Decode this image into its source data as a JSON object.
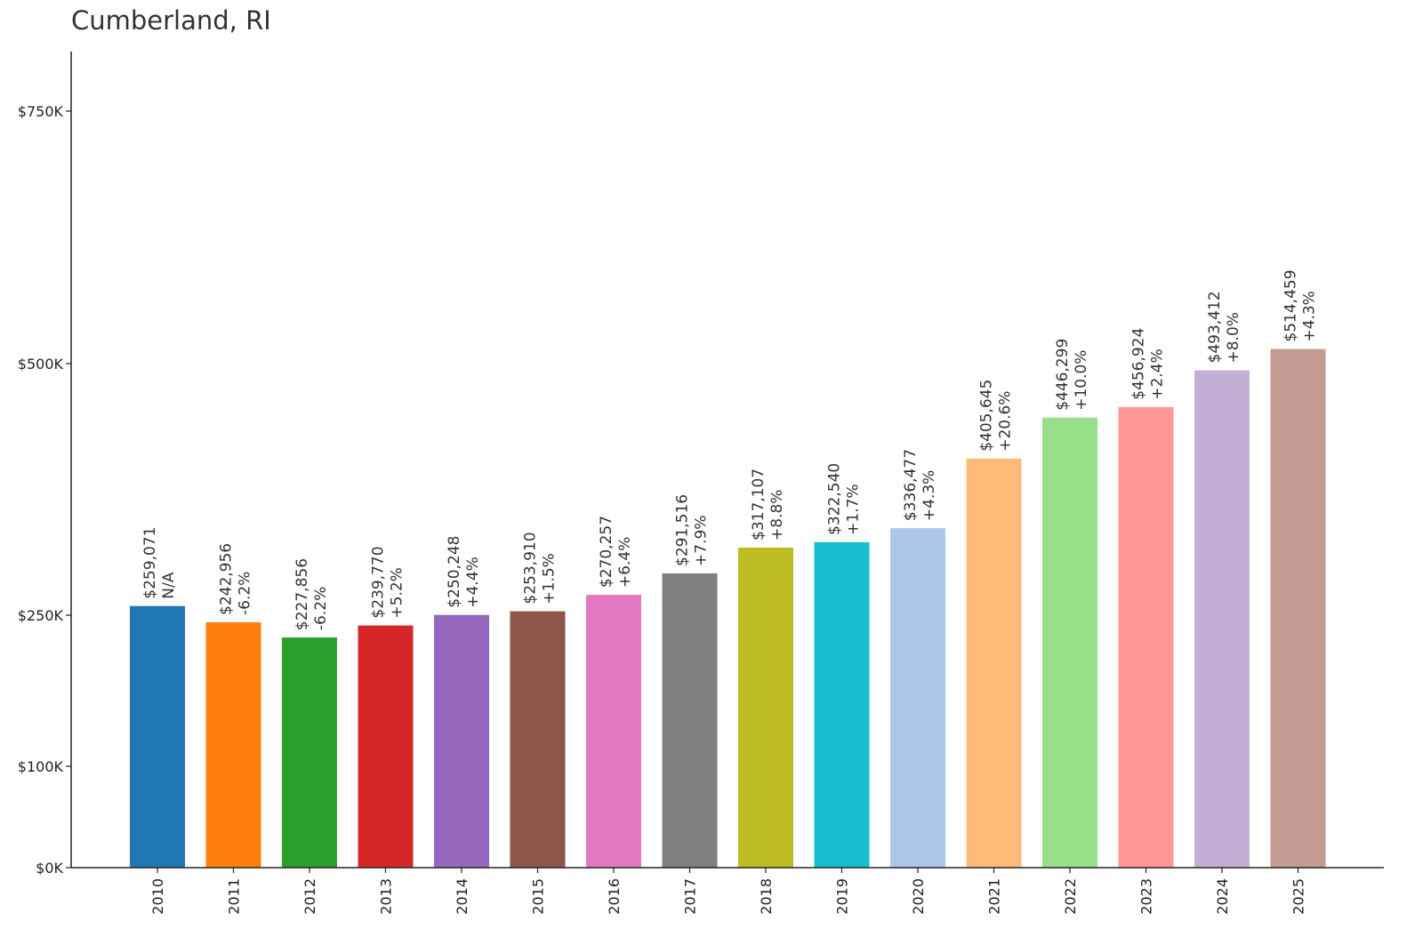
{
  "chart_data": {
    "type": "bar",
    "title": "Cumberland, RI",
    "xlabel": "",
    "ylabel": "",
    "ylim": [
      0,
      750000
    ],
    "yticks": [
      {
        "value": 0,
        "label": "$0K"
      },
      {
        "value": 100000,
        "label": "$100K"
      },
      {
        "value": 250000,
        "label": "$250K"
      },
      {
        "value": 500000,
        "label": "$500K"
      },
      {
        "value": 750000,
        "label": "$750K"
      }
    ],
    "categories": [
      "2010",
      "2011",
      "2012",
      "2013",
      "2014",
      "2015",
      "2016",
      "2017",
      "2018",
      "2019",
      "2020",
      "2021",
      "2022",
      "2023",
      "2024",
      "2025"
    ],
    "values": [
      259071,
      242956,
      227856,
      239770,
      250248,
      253910,
      270257,
      291516,
      317107,
      322540,
      336477,
      405645,
      446299,
      456924,
      493412,
      514459
    ],
    "value_labels": [
      "$259,071",
      "$242,956",
      "$227,856",
      "$239,770",
      "$250,248",
      "$253,910",
      "$270,257",
      "$291,516",
      "$317,107",
      "$322,540",
      "$336,477",
      "$405,645",
      "$446,299",
      "$456,924",
      "$493,412",
      "$514,459"
    ],
    "change_labels": [
      "N/A",
      "-6.2%",
      "-6.2%",
      "+5.2%",
      "+4.4%",
      "+1.5%",
      "+6.4%",
      "+7.9%",
      "+8.8%",
      "+1.7%",
      "+4.3%",
      "+20.6%",
      "+10.0%",
      "+2.4%",
      "+8.0%",
      "+4.3%"
    ],
    "colors": [
      "#1f77b4",
      "#ff7f0e",
      "#2ca02c",
      "#d62728",
      "#9467bd",
      "#8c564b",
      "#e377c2",
      "#7f7f7f",
      "#bcbd22",
      "#17becf",
      "#aec7e8",
      "#ffbb78",
      "#98df8a",
      "#ff9896",
      "#c5b0d5",
      "#c49c94"
    ],
    "grid": false,
    "legend": "none"
  }
}
